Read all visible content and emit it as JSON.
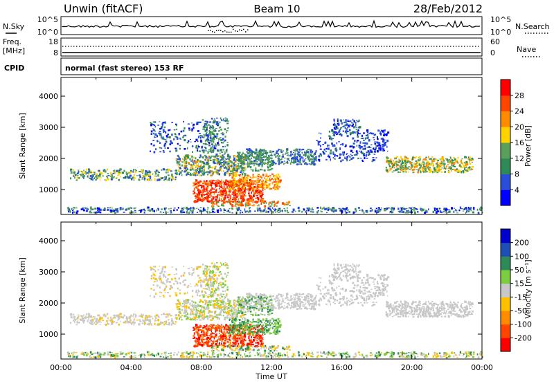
{
  "header": {
    "station": "Unwin (fitACF)",
    "beam": "Beam 10",
    "date": "28/Feb/2012"
  },
  "noise_panel": {
    "left_label": "N.Sky",
    "right_label": "N.Search",
    "left_ticks": [
      "10^5",
      "10^0"
    ],
    "right_ticks": [
      "10^5",
      "10^0"
    ]
  },
  "freq_panel": {
    "left_label_1": "Freq.",
    "left_label_2": "[MHz]",
    "right_label": "Nave",
    "left_ticks": [
      "18",
      "8"
    ],
    "right_ticks": [
      "60",
      "0"
    ]
  },
  "cpid": {
    "label": "CPID",
    "text": "normal (fast stereo) 153 RF"
  },
  "colors": {
    "power_scale": [
      "#0000ff",
      "#2a4fd6",
      "#2e8b57",
      "#5aa05a",
      "#ffd200",
      "#ff8c00",
      "#ff4500",
      "#ff0000"
    ],
    "velocity_scale": [
      "#ff0000",
      "#ff4500",
      "#ff8c00",
      "#ffc000",
      "#c8c8c8",
      "#7ccd40",
      "#2e8b57",
      "#1f4fb5",
      "#0000cd"
    ]
  },
  "chart_data": [
    {
      "type": "heatmap",
      "title": "",
      "xlabel": "",
      "ylabel": "Slant Range [km]",
      "x_ticks": [
        "00:00",
        "04:00",
        "08:00",
        "12:00",
        "16:00",
        "20:00",
        "00:00"
      ],
      "y_ticks": [
        "1000",
        "2000",
        "3000",
        "4000"
      ],
      "ylim": [
        200,
        4600
      ],
      "colorbar_label": "Power [dB]",
      "colorbar_ticks": [
        "28",
        "24",
        "20",
        "16",
        "12",
        "8",
        "4"
      ],
      "colorbar_range": [
        0,
        32
      ]
    },
    {
      "type": "heatmap",
      "title": "",
      "xlabel": "Time UT",
      "ylabel": "Slant Range [km]",
      "x_ticks": [
        "00:00",
        "04:00",
        "08:00",
        "12:00",
        "16:00",
        "20:00",
        "00:00"
      ],
      "y_ticks": [
        "1000",
        "2000",
        "3000",
        "4000"
      ],
      "ylim": [
        200,
        4600
      ],
      "colorbar_label": "Velocity [m s⁻¹]",
      "colorbar_ticks": [
        "200",
        "100",
        "50",
        "15",
        "-15",
        "-50",
        "-100",
        "-200"
      ]
    }
  ]
}
